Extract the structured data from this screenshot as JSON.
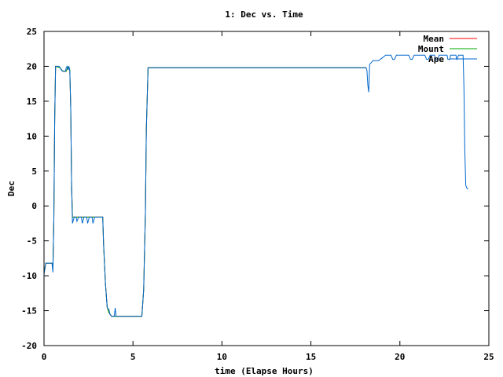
{
  "chart_data": {
    "type": "line",
    "title": "1: Dec vs. Time",
    "xlabel": "time (Elapse Hours)",
    "ylabel": "Dec",
    "xlim": [
      0,
      25
    ],
    "ylim": [
      -20,
      25
    ],
    "xticks": [
      0,
      5,
      10,
      15,
      20,
      25
    ],
    "yticks": [
      -20,
      -15,
      -10,
      -5,
      0,
      5,
      10,
      15,
      20,
      25
    ],
    "grid": false,
    "legend_position": "top-right",
    "series": [
      {
        "name": "Mean",
        "color": "#ff0000",
        "points": [
          [
            0.0,
            -9.5
          ],
          [
            0.1,
            -8.2
          ],
          [
            0.45,
            -8.2
          ],
          [
            0.5,
            -9.0
          ],
          [
            0.55,
            -2.0
          ],
          [
            0.6,
            12.5
          ],
          [
            0.65,
            20.0
          ],
          [
            0.9,
            19.8
          ],
          [
            1.05,
            19.3
          ],
          [
            1.25,
            19.3
          ],
          [
            1.35,
            19.9
          ],
          [
            1.45,
            19.5
          ],
          [
            1.5,
            14.0
          ],
          [
            1.55,
            3.0
          ],
          [
            1.6,
            -1.6
          ],
          [
            2.7,
            -1.6
          ],
          [
            3.3,
            -1.6
          ],
          [
            3.35,
            -5.5
          ],
          [
            3.45,
            -11.0
          ],
          [
            3.55,
            -14.5
          ],
          [
            3.65,
            -15.3
          ],
          [
            3.8,
            -15.8
          ],
          [
            5.5,
            -15.8
          ],
          [
            5.6,
            -12.0
          ],
          [
            5.7,
            -1.0
          ],
          [
            5.75,
            11.0
          ],
          [
            5.85,
            19.8
          ],
          [
            18.1,
            19.8
          ]
        ]
      },
      {
        "name": "Mount",
        "color": "#00aa00",
        "points": [
          [
            0.0,
            -9.5
          ],
          [
            0.1,
            -8.2
          ],
          [
            0.45,
            -8.2
          ],
          [
            0.5,
            -9.0
          ],
          [
            0.55,
            -2.0
          ],
          [
            0.6,
            12.5
          ],
          [
            0.65,
            20.0
          ],
          [
            0.9,
            19.8
          ],
          [
            1.05,
            19.3
          ],
          [
            1.25,
            19.3
          ],
          [
            1.35,
            19.9
          ],
          [
            1.45,
            19.5
          ],
          [
            1.5,
            14.0
          ],
          [
            1.55,
            3.0
          ],
          [
            1.6,
            -1.6
          ],
          [
            2.7,
            -1.6
          ],
          [
            3.3,
            -1.6
          ],
          [
            3.35,
            -5.5
          ],
          [
            3.45,
            -11.0
          ],
          [
            3.55,
            -14.5
          ],
          [
            3.65,
            -15.3
          ],
          [
            3.8,
            -15.8
          ],
          [
            5.5,
            -15.8
          ],
          [
            5.6,
            -12.0
          ],
          [
            5.7,
            -1.0
          ],
          [
            5.75,
            11.0
          ],
          [
            5.85,
            19.8
          ],
          [
            18.1,
            19.8
          ]
        ]
      },
      {
        "name": "Ape",
        "color": "#0066cc",
        "points": [
          [
            0.0,
            -9.8
          ],
          [
            0.05,
            -9.0
          ],
          [
            0.1,
            -8.2
          ],
          [
            0.45,
            -8.2
          ],
          [
            0.5,
            -9.5
          ],
          [
            0.55,
            -2.0
          ],
          [
            0.6,
            12.5
          ],
          [
            0.65,
            20.0
          ],
          [
            0.85,
            20.0
          ],
          [
            0.9,
            19.8
          ],
          [
            1.0,
            19.4
          ],
          [
            1.1,
            19.3
          ],
          [
            1.2,
            19.3
          ],
          [
            1.25,
            19.8
          ],
          [
            1.3,
            20.0
          ],
          [
            1.35,
            19.5
          ],
          [
            1.4,
            20.0
          ],
          [
            1.45,
            19.4
          ],
          [
            1.5,
            14.0
          ],
          [
            1.55,
            3.0
          ],
          [
            1.6,
            -2.5
          ],
          [
            1.7,
            -1.6
          ],
          [
            1.8,
            -1.6
          ],
          [
            1.85,
            -2.2
          ],
          [
            1.95,
            -1.6
          ],
          [
            2.1,
            -1.6
          ],
          [
            2.15,
            -2.5
          ],
          [
            2.25,
            -1.6
          ],
          [
            2.4,
            -1.6
          ],
          [
            2.45,
            -2.5
          ],
          [
            2.55,
            -1.6
          ],
          [
            2.7,
            -1.6
          ],
          [
            2.75,
            -2.5
          ],
          [
            2.85,
            -1.6
          ],
          [
            3.3,
            -1.6
          ],
          [
            3.35,
            -5.5
          ],
          [
            3.45,
            -11.0
          ],
          [
            3.55,
            -14.6
          ],
          [
            3.65,
            -14.8
          ],
          [
            3.7,
            -15.5
          ],
          [
            3.8,
            -15.8
          ],
          [
            3.95,
            -15.8
          ],
          [
            4.0,
            -14.6
          ],
          [
            4.05,
            -15.8
          ],
          [
            5.5,
            -15.8
          ],
          [
            5.6,
            -12.0
          ],
          [
            5.7,
            -1.0
          ],
          [
            5.75,
            11.0
          ],
          [
            5.85,
            19.8
          ],
          [
            18.1,
            19.8
          ],
          [
            18.15,
            19.4
          ],
          [
            18.2,
            17.3
          ],
          [
            18.25,
            16.3
          ],
          [
            18.3,
            20.3
          ],
          [
            18.5,
            20.8
          ],
          [
            18.8,
            20.8
          ],
          [
            19.0,
            21.2
          ],
          [
            19.2,
            21.6
          ],
          [
            19.5,
            21.6
          ],
          [
            19.6,
            21.0
          ],
          [
            19.7,
            21.0
          ],
          [
            19.8,
            21.6
          ],
          [
            20.5,
            21.6
          ],
          [
            20.6,
            21.0
          ],
          [
            20.7,
            21.0
          ],
          [
            20.8,
            21.6
          ],
          [
            21.4,
            21.6
          ],
          [
            21.5,
            21.0
          ],
          [
            21.6,
            21.0
          ],
          [
            21.7,
            21.6
          ],
          [
            21.95,
            21.6
          ],
          [
            22.0,
            21.0
          ],
          [
            22.15,
            21.0
          ],
          [
            22.2,
            21.6
          ],
          [
            22.65,
            21.6
          ],
          [
            22.7,
            21.0
          ],
          [
            22.8,
            21.0
          ],
          [
            22.85,
            21.6
          ],
          [
            23.15,
            21.6
          ],
          [
            23.2,
            21.0
          ],
          [
            23.3,
            21.6
          ],
          [
            23.55,
            21.6
          ],
          [
            23.6,
            17.0
          ],
          [
            23.65,
            8.0
          ],
          [
            23.7,
            3.0
          ],
          [
            23.75,
            2.6
          ],
          [
            23.8,
            2.5
          ],
          [
            23.85,
            2.5
          ]
        ]
      }
    ]
  }
}
